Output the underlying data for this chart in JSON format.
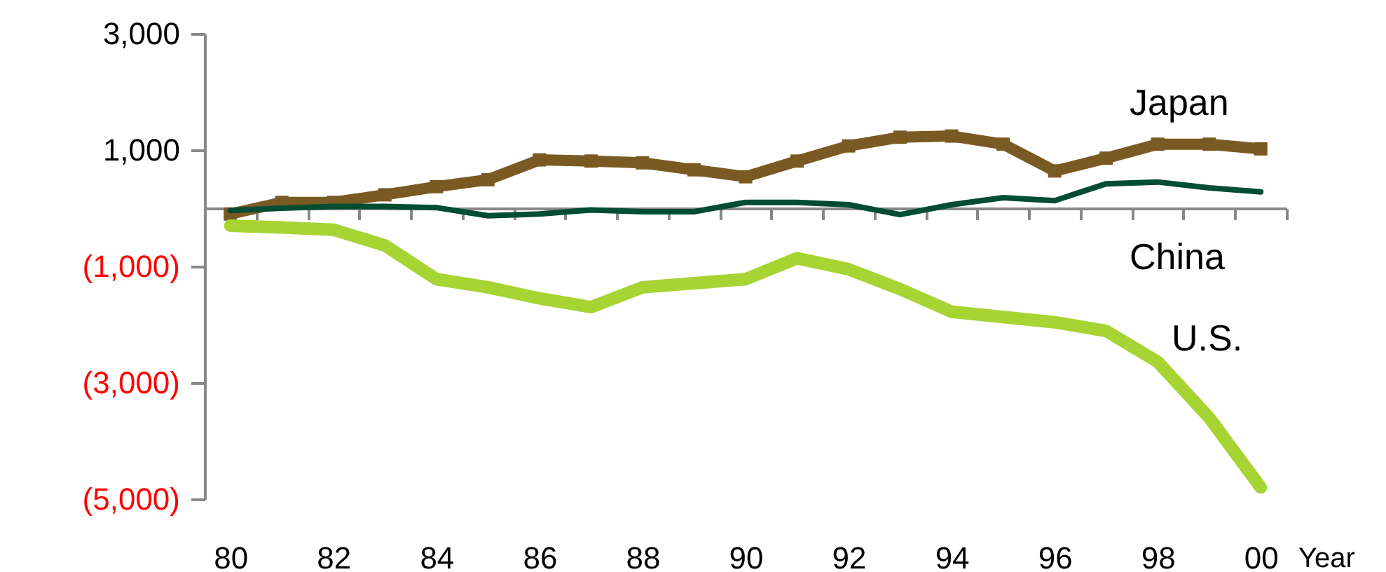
{
  "chart_data": {
    "type": "line",
    "xlabel": "Year",
    "categories": [
      "80",
      null,
      "82",
      null,
      "84",
      null,
      "86",
      null,
      "88",
      null,
      "90",
      null,
      "92",
      null,
      "94",
      null,
      "96",
      null,
      "98",
      null,
      "00"
    ],
    "series": [
      {
        "name": "Japan",
        "color": "#7a5a23",
        "marker": "square",
        "values": [
          -100,
          100,
          100,
          230,
          370,
          490,
          830,
          810,
          780,
          660,
          540,
          810,
          1070,
          1220,
          1240,
          1100,
          640,
          860,
          1100,
          1100,
          1020
        ]
      },
      {
        "name": "China",
        "color": "#004d33",
        "values": [
          -40,
          0,
          30,
          30,
          10,
          -130,
          -100,
          -30,
          -60,
          -60,
          100,
          100,
          60,
          -110,
          60,
          180,
          130,
          420,
          450,
          350,
          280
        ]
      },
      {
        "name": "U.S.",
        "color": "#a6d433",
        "values": [
          -300,
          -330,
          -370,
          -640,
          -1220,
          -1360,
          -1550,
          -1700,
          -1360,
          -1290,
          -1220,
          -860,
          -1050,
          -1390,
          -1780,
          -1870,
          -1960,
          -2110,
          -2640,
          -3600,
          -4800
        ]
      }
    ],
    "ylim": [
      -5000,
      3000
    ],
    "yticks": [
      {
        "value": 3000,
        "label": "3,000"
      },
      {
        "value": 1000,
        "label": "1,000"
      },
      {
        "value": -1000,
        "label": "(1,000)"
      },
      {
        "value": -3000,
        "label": "(3,000)"
      },
      {
        "value": -5000,
        "label": "(5,000)"
      }
    ],
    "legend": false,
    "grid": false
  }
}
